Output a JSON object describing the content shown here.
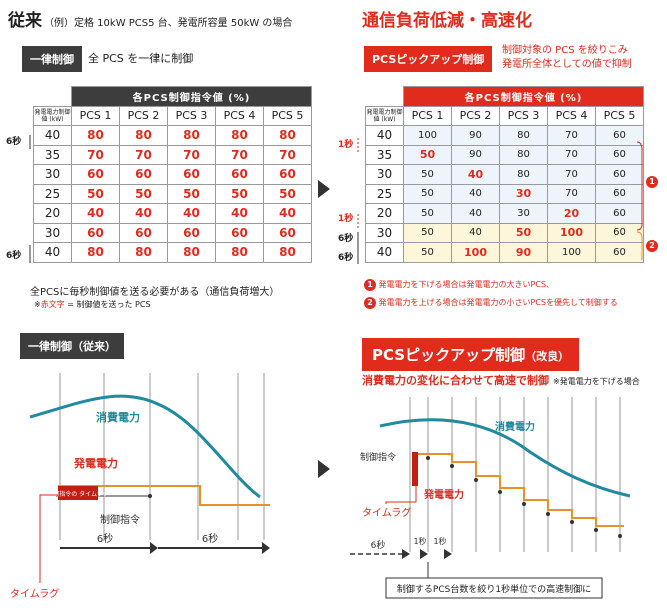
{
  "left": {
    "title": "従来",
    "subtitle": "（例）定格 10kW PCS5 台、発電所容量 50kW の場合",
    "tag": "一律制御",
    "tag_desc": "全 PCS を一律に制御",
    "table_header": "各PCS制御指令値 (%)",
    "row_label": "発電電力制御値 (kW)",
    "columns": [
      "PCS 1",
      "PCS 2",
      "PCS 3",
      "PCS 4",
      "PCS 5"
    ],
    "rows": [
      {
        "kw": "40",
        "vals": [
          "80",
          "80",
          "80",
          "80",
          "80"
        ]
      },
      {
        "kw": "35",
        "vals": [
          "70",
          "70",
          "70",
          "70",
          "70"
        ]
      },
      {
        "kw": "30",
        "vals": [
          "60",
          "60",
          "60",
          "60",
          "60"
        ]
      },
      {
        "kw": "25",
        "vals": [
          "50",
          "50",
          "50",
          "50",
          "50"
        ]
      },
      {
        "kw": "20",
        "vals": [
          "40",
          "40",
          "40",
          "40",
          "40"
        ]
      },
      {
        "kw": "30",
        "vals": [
          "60",
          "60",
          "60",
          "60",
          "60"
        ]
      },
      {
        "kw": "40",
        "vals": [
          "80",
          "80",
          "80",
          "80",
          "80"
        ]
      }
    ],
    "side_label_top": "6秒",
    "side_label_bottom": "6秒",
    "note1": "全PCSに毎秒制御値を送る必要がある（通信負荷増大）",
    "note2_prefix": "※",
    "note2_red": "赤文字",
    "note2_rest": " = 制御値を送った PCS"
  },
  "right": {
    "title": "通信負荷低減・高速化",
    "tag": "PCSピックアップ制御",
    "tag_desc1": "制御対象の PCS を絞りこみ",
    "tag_desc2": "発電所全体としての値で抑制",
    "table_header": "各PCS制御指令値 (%)",
    "row_label": "発電電力制御値 (kW)",
    "columns": [
      "PCS 1",
      "PCS 2",
      "PCS 3",
      "PCS 4",
      "PCS 5"
    ],
    "rows": [
      {
        "kw": "40",
        "vals": [
          "100",
          "90",
          "80",
          "70",
          "60"
        ],
        "red": [
          false,
          false,
          false,
          false,
          false
        ]
      },
      {
        "kw": "35",
        "vals": [
          "50",
          "90",
          "80",
          "70",
          "60"
        ],
        "red": [
          true,
          false,
          false,
          false,
          false
        ]
      },
      {
        "kw": "30",
        "vals": [
          "50",
          "40",
          "80",
          "70",
          "60"
        ],
        "red": [
          false,
          true,
          false,
          false,
          false
        ]
      },
      {
        "kw": "25",
        "vals": [
          "50",
          "40",
          "30",
          "70",
          "60"
        ],
        "red": [
          false,
          false,
          true,
          false,
          false
        ]
      },
      {
        "kw": "20",
        "vals": [
          "50",
          "40",
          "30",
          "20",
          "60"
        ],
        "red": [
          false,
          false,
          false,
          true,
          false
        ]
      },
      {
        "kw": "30",
        "vals": [
          "50",
          "40",
          "50",
          "100",
          "60"
        ],
        "red": [
          false,
          false,
          true,
          true,
          false
        ]
      },
      {
        "kw": "40",
        "vals": [
          "50",
          "100",
          "90",
          "100",
          "60"
        ],
        "red": [
          false,
          true,
          true,
          false,
          false
        ]
      }
    ],
    "side_1s_top": "1秒",
    "side_1s_bottom": "1秒",
    "side_6s_top": "6秒",
    "side_6s_bottom": "6秒",
    "badge1": "1",
    "badge2": "2",
    "note1": "発電電力を下げる場合は発電電力の大きいPCS、",
    "note2": "発電電力を上げる場合は発電電力の小さいPCSを優先して制御する"
  },
  "bottom_left": {
    "tag": "一律制御（従来）",
    "consumption": "消費電力",
    "generation": "発電電力",
    "command": "制御指令",
    "box_text": "制御指令の タイムラグ",
    "interval1": "6秒",
    "interval2": "6秒",
    "timelag": "タイムラグ"
  },
  "bottom_right": {
    "tag": "PCSピックアップ制御",
    "tag_suffix": "（改良）",
    "subtitle": "消費電力の変化に合わせて高速で制御",
    "subtitle_note": "※発電電力を下げる場合",
    "consumption": "消費電力",
    "generation": "発電電力",
    "command": "制御指令",
    "timelag": "タイムラグ",
    "int6": "6秒",
    "int1a": "1秒",
    "int1b": "1秒",
    "callout": "制御するPCS台数を絞り1秒単位での高速制御に"
  },
  "colors": {
    "accent": "#e12b1c",
    "dark": "#3d3d3d",
    "teal": "#1f8aa0",
    "orange": "#e8912a"
  }
}
